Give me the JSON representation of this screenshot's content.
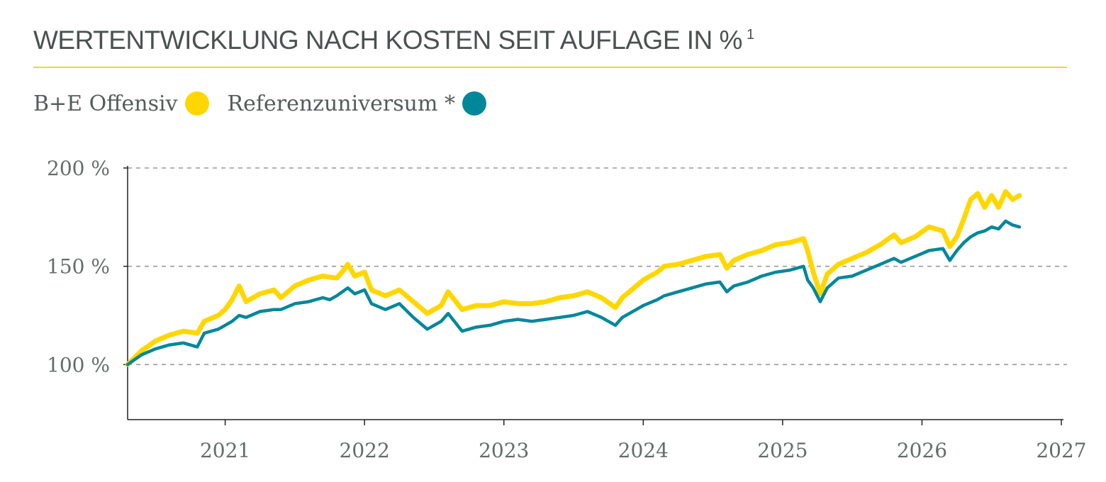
{
  "header": {
    "title": "WERTENTWICKLUNG NACH KOSTEN SEIT AUFLAGE IN %",
    "footnote": "1"
  },
  "legend": [
    {
      "label": "B+E Offensiv",
      "color": "#ffd700"
    },
    {
      "label": "Referenzuniversum *",
      "color": "#00879a"
    }
  ],
  "chart_data": {
    "type": "line",
    "x_ticks": [
      "2021",
      "2022",
      "2023",
      "2024",
      "2025",
      "2026",
      "2027"
    ],
    "y_ticks": [
      "100 %",
      "150 %",
      "200 %"
    ],
    "ylim": [
      72,
      200
    ],
    "xlim": [
      2020.3,
      2027.0
    ],
    "grid": true,
    "legend_position": "top-left",
    "series": [
      {
        "name": "B+E Offensiv",
        "color": "#ffd700",
        "points": [
          [
            2020.3,
            100
          ],
          [
            2020.4,
            107
          ],
          [
            2020.5,
            112
          ],
          [
            2020.6,
            115
          ],
          [
            2020.7,
            117
          ],
          [
            2020.8,
            116
          ],
          [
            2020.85,
            122
          ],
          [
            2020.95,
            125
          ],
          [
            2021.0,
            128
          ],
          [
            2021.05,
            133
          ],
          [
            2021.1,
            140
          ],
          [
            2021.15,
            132
          ],
          [
            2021.25,
            136
          ],
          [
            2021.35,
            138
          ],
          [
            2021.4,
            134
          ],
          [
            2021.5,
            140
          ],
          [
            2021.6,
            143
          ],
          [
            2021.7,
            145
          ],
          [
            2021.8,
            144
          ],
          [
            2021.85,
            148
          ],
          [
            2021.88,
            151
          ],
          [
            2021.93,
            145
          ],
          [
            2022.0,
            147
          ],
          [
            2022.05,
            138
          ],
          [
            2022.15,
            135
          ],
          [
            2022.25,
            138
          ],
          [
            2022.35,
            132
          ],
          [
            2022.45,
            126
          ],
          [
            2022.55,
            130
          ],
          [
            2022.6,
            137
          ],
          [
            2022.7,
            128
          ],
          [
            2022.8,
            130
          ],
          [
            2022.9,
            130
          ],
          [
            2023.0,
            132
          ],
          [
            2023.1,
            131
          ],
          [
            2023.2,
            131
          ],
          [
            2023.3,
            132
          ],
          [
            2023.4,
            134
          ],
          [
            2023.5,
            135
          ],
          [
            2023.6,
            137
          ],
          [
            2023.7,
            134
          ],
          [
            2023.8,
            129
          ],
          [
            2023.85,
            134
          ],
          [
            2023.95,
            140
          ],
          [
            2024.0,
            143
          ],
          [
            2024.1,
            147
          ],
          [
            2024.15,
            150
          ],
          [
            2024.25,
            151
          ],
          [
            2024.35,
            153
          ],
          [
            2024.45,
            155
          ],
          [
            2024.55,
            156
          ],
          [
            2024.6,
            149
          ],
          [
            2024.65,
            153
          ],
          [
            2024.75,
            156
          ],
          [
            2024.85,
            158
          ],
          [
            2024.95,
            161
          ],
          [
            2025.05,
            162
          ],
          [
            2025.15,
            164
          ],
          [
            2025.18,
            158
          ],
          [
            2025.22,
            147
          ],
          [
            2025.27,
            136
          ],
          [
            2025.32,
            146
          ],
          [
            2025.4,
            151
          ],
          [
            2025.5,
            154
          ],
          [
            2025.6,
            157
          ],
          [
            2025.7,
            161
          ],
          [
            2025.8,
            166
          ],
          [
            2025.85,
            162
          ],
          [
            2025.95,
            165
          ],
          [
            2026.05,
            170
          ],
          [
            2026.15,
            168
          ],
          [
            2026.2,
            160
          ],
          [
            2026.25,
            165
          ],
          [
            2026.3,
            174
          ],
          [
            2026.35,
            184
          ],
          [
            2026.4,
            187
          ],
          [
            2026.45,
            180
          ],
          [
            2026.5,
            186
          ],
          [
            2026.55,
            180
          ],
          [
            2026.6,
            188
          ],
          [
            2026.65,
            184
          ],
          [
            2026.7,
            186
          ]
        ]
      },
      {
        "name": "Referenzuniversum *",
        "color": "#00879a",
        "points": [
          [
            2020.3,
            100
          ],
          [
            2020.4,
            105
          ],
          [
            2020.5,
            108
          ],
          [
            2020.6,
            110
          ],
          [
            2020.7,
            111
          ],
          [
            2020.8,
            109
          ],
          [
            2020.85,
            116
          ],
          [
            2020.95,
            118
          ],
          [
            2021.0,
            120
          ],
          [
            2021.05,
            122
          ],
          [
            2021.1,
            125
          ],
          [
            2021.15,
            124
          ],
          [
            2021.25,
            127
          ],
          [
            2021.35,
            128
          ],
          [
            2021.4,
            128
          ],
          [
            2021.5,
            131
          ],
          [
            2021.6,
            132
          ],
          [
            2021.7,
            134
          ],
          [
            2021.75,
            133
          ],
          [
            2021.8,
            135
          ],
          [
            2021.88,
            139
          ],
          [
            2021.93,
            136
          ],
          [
            2022.0,
            138
          ],
          [
            2022.05,
            131
          ],
          [
            2022.15,
            128
          ],
          [
            2022.25,
            131
          ],
          [
            2022.35,
            124
          ],
          [
            2022.45,
            118
          ],
          [
            2022.55,
            122
          ],
          [
            2022.6,
            126
          ],
          [
            2022.7,
            117
          ],
          [
            2022.8,
            119
          ],
          [
            2022.9,
            120
          ],
          [
            2023.0,
            122
          ],
          [
            2023.1,
            123
          ],
          [
            2023.2,
            122
          ],
          [
            2023.3,
            123
          ],
          [
            2023.4,
            124
          ],
          [
            2023.5,
            125
          ],
          [
            2023.6,
            127
          ],
          [
            2023.7,
            124
          ],
          [
            2023.8,
            120
          ],
          [
            2023.85,
            124
          ],
          [
            2023.95,
            128
          ],
          [
            2024.0,
            130
          ],
          [
            2024.1,
            133
          ],
          [
            2024.15,
            135
          ],
          [
            2024.25,
            137
          ],
          [
            2024.35,
            139
          ],
          [
            2024.45,
            141
          ],
          [
            2024.55,
            142
          ],
          [
            2024.6,
            137
          ],
          [
            2024.65,
            140
          ],
          [
            2024.75,
            142
          ],
          [
            2024.85,
            145
          ],
          [
            2024.95,
            147
          ],
          [
            2025.05,
            148
          ],
          [
            2025.15,
            150
          ],
          [
            2025.18,
            143
          ],
          [
            2025.22,
            139
          ],
          [
            2025.27,
            132
          ],
          [
            2025.32,
            139
          ],
          [
            2025.4,
            144
          ],
          [
            2025.5,
            145
          ],
          [
            2025.6,
            148
          ],
          [
            2025.7,
            151
          ],
          [
            2025.8,
            154
          ],
          [
            2025.85,
            152
          ],
          [
            2025.95,
            155
          ],
          [
            2026.05,
            158
          ],
          [
            2026.15,
            159
          ],
          [
            2026.2,
            153
          ],
          [
            2026.25,
            158
          ],
          [
            2026.3,
            162
          ],
          [
            2026.35,
            165
          ],
          [
            2026.4,
            167
          ],
          [
            2026.45,
            168
          ],
          [
            2026.5,
            170
          ],
          [
            2026.55,
            169
          ],
          [
            2026.6,
            173
          ],
          [
            2026.65,
            171
          ],
          [
            2026.7,
            170
          ]
        ]
      }
    ]
  }
}
